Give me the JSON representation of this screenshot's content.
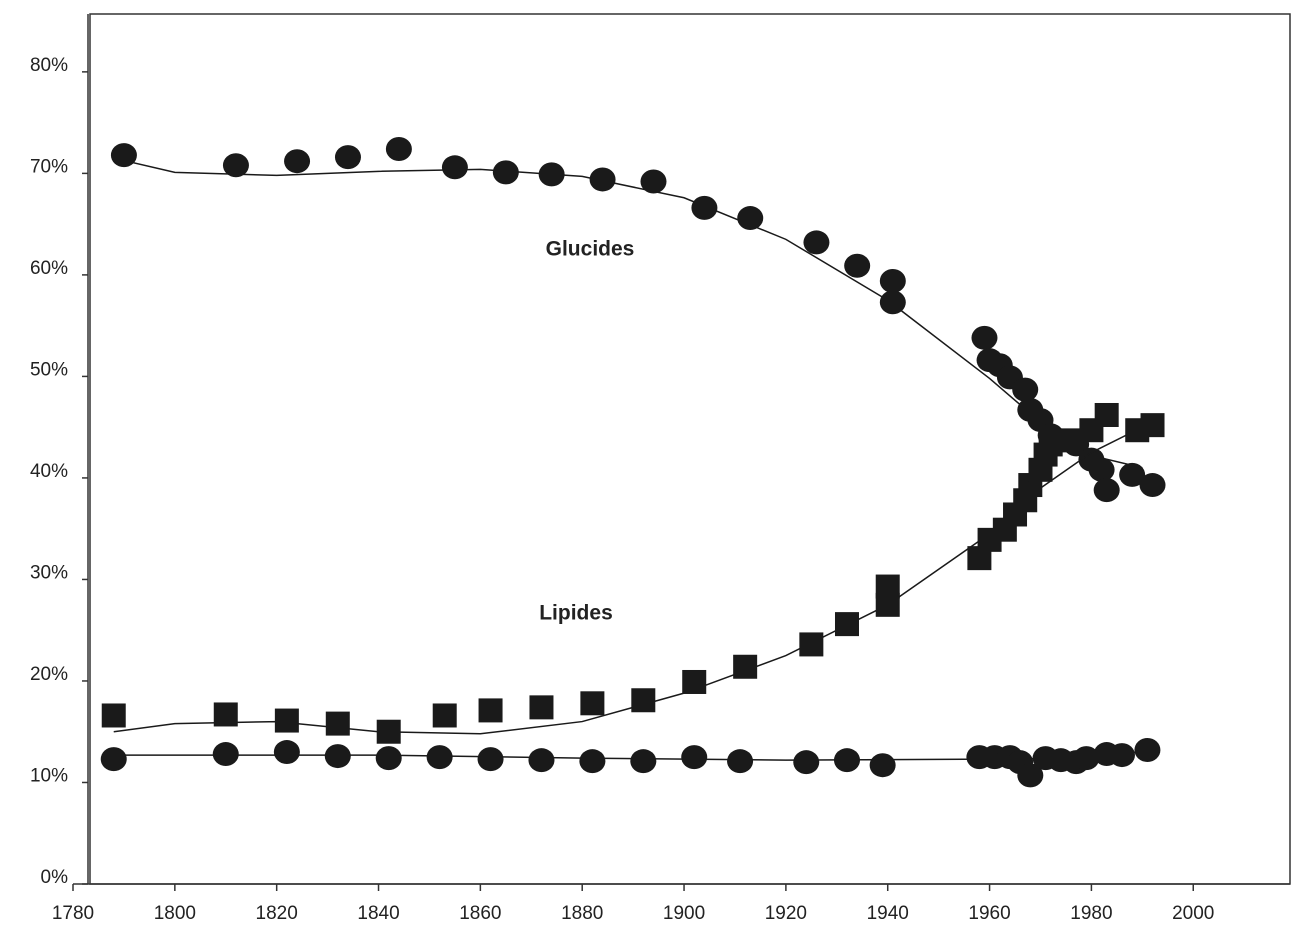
{
  "chart_data": {
    "type": "scatter",
    "xlim": [
      1780,
      2019
    ],
    "ylim": [
      0,
      85.7
    ],
    "xticks": [
      1780,
      1800,
      1820,
      1840,
      1860,
      1880,
      1900,
      1920,
      1940,
      1960,
      1980,
      2000
    ],
    "yticks": [
      {
        "value": 0,
        "label": "0%"
      },
      {
        "value": 10,
        "label": "10%"
      },
      {
        "value": 20,
        "label": "20%"
      },
      {
        "value": 30,
        "label": "30%"
      },
      {
        "value": 40,
        "label": "40%"
      },
      {
        "value": 50,
        "label": "50%"
      },
      {
        "value": 60,
        "label": "60%"
      },
      {
        "value": 70,
        "label": "70%"
      },
      {
        "value": 80,
        "label": "80%"
      }
    ],
    "series": [
      {
        "name": "Glucides",
        "marker": "circle",
        "color": "#1a1a1a",
        "x": [
          1790,
          1812,
          1824,
          1834,
          1844,
          1855,
          1865,
          1874,
          1884,
          1894,
          1904,
          1913,
          1926,
          1934,
          1941,
          1941,
          1959,
          1960,
          1962,
          1964,
          1967,
          1968,
          1970,
          1972,
          1974,
          1977,
          1980,
          1982,
          1983,
          1988,
          1992
        ],
        "values": [
          71.8,
          70.8,
          71.2,
          71.6,
          72.4,
          70.6,
          70.1,
          69.9,
          69.4,
          69.2,
          66.6,
          65.6,
          63.2,
          60.9,
          59.4,
          57.3,
          53.8,
          51.6,
          51.1,
          49.9,
          48.7,
          46.7,
          45.7,
          44.2,
          43.7,
          43.3,
          41.8,
          40.8,
          38.8,
          40.3,
          39.3
        ],
        "fit": {
          "x": [
            1788,
            1800,
            1820,
            1840,
            1860,
            1880,
            1900,
            1920,
            1940,
            1960,
            1970,
            1980,
            1990
          ],
          "values": [
            71.5,
            70.1,
            69.8,
            70.2,
            70.4,
            69.7,
            67.6,
            63.5,
            57.5,
            49.8,
            45.5,
            42.2,
            41.0
          ]
        }
      },
      {
        "name": "Lipides",
        "marker": "square",
        "color": "#1a1a1a",
        "x": [
          1788,
          1810,
          1822,
          1832,
          1842,
          1853,
          1862,
          1872,
          1882,
          1892,
          1902,
          1912,
          1925,
          1932,
          1940,
          1940,
          1958,
          1960,
          1963,
          1965,
          1967,
          1968,
          1970,
          1971,
          1972,
          1976,
          1980,
          1983,
          1989,
          1992
        ],
        "values": [
          16.6,
          16.7,
          16.1,
          15.8,
          15.0,
          16.6,
          17.1,
          17.4,
          17.8,
          18.1,
          19.9,
          21.4,
          23.6,
          25.6,
          27.5,
          29.3,
          32.1,
          33.9,
          34.9,
          36.4,
          37.8,
          39.3,
          40.8,
          42.3,
          43.3,
          43.7,
          44.7,
          46.2,
          44.7,
          45.2
        ],
        "fit": {
          "x": [
            1788,
            1800,
            1820,
            1840,
            1860,
            1880,
            1900,
            1920,
            1940,
            1960,
            1970,
            1980,
            1992
          ],
          "values": [
            15.0,
            15.8,
            16.0,
            15.0,
            14.8,
            16.0,
            18.8,
            22.5,
            27.5,
            34.5,
            39.0,
            42.5,
            45.5
          ]
        }
      },
      {
        "marker": "circle",
        "color": "#1a1a1a",
        "x": [
          1788,
          1810,
          1822,
          1832,
          1842,
          1852,
          1862,
          1872,
          1882,
          1892,
          1902,
          1911,
          1924,
          1932,
          1939,
          1958,
          1961,
          1964,
          1966,
          1968,
          1971,
          1974,
          1977,
          1979,
          1983,
          1986,
          1991
        ],
        "values": [
          12.3,
          12.8,
          13.0,
          12.6,
          12.4,
          12.5,
          12.3,
          12.2,
          12.1,
          12.1,
          12.5,
          12.1,
          12.0,
          12.2,
          11.7,
          12.5,
          12.5,
          12.5,
          12.0,
          10.7,
          12.4,
          12.2,
          12.0,
          12.4,
          12.8,
          12.7,
          13.2
        ],
        "fit": {
          "x": [
            1788,
            1800,
            1840,
            1880,
            1920,
            1960,
            1980,
            1992
          ],
          "values": [
            12.7,
            12.7,
            12.7,
            12.4,
            12.2,
            12.3,
            12.4,
            13.2
          ]
        }
      }
    ]
  }
}
